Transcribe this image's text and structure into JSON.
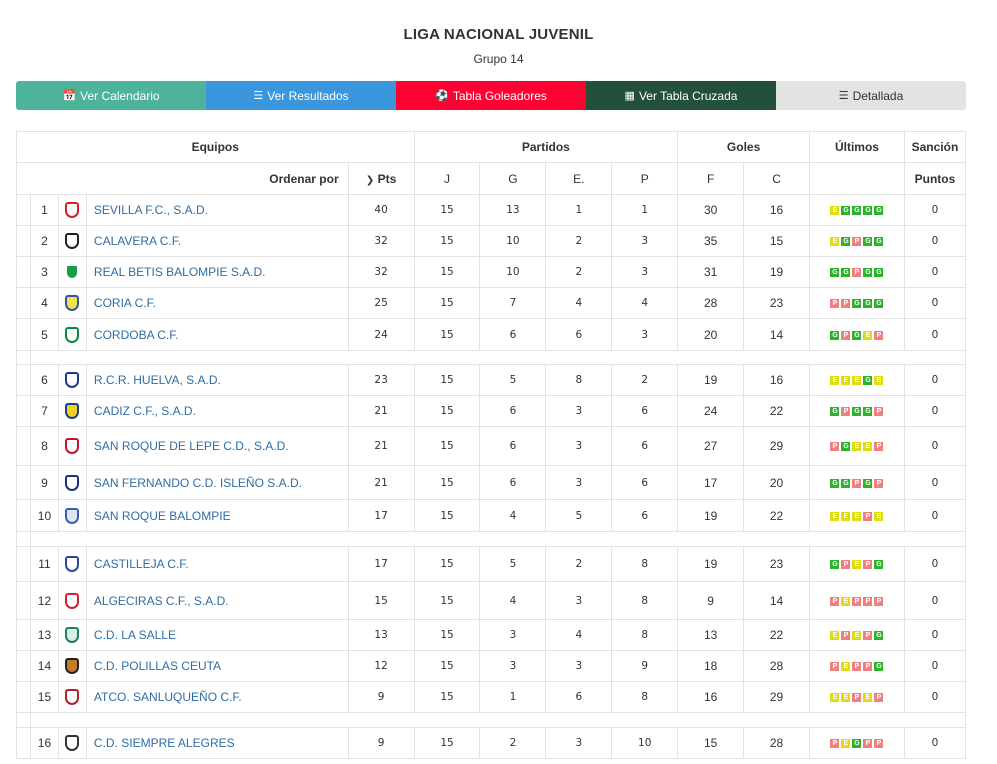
{
  "header": {
    "title": "LIGA NACIONAL JUVENIL",
    "subtitle": "Grupo 14"
  },
  "buttons": [
    {
      "label": "Ver Calendario",
      "icon": "calendar-icon",
      "color": "#4db39a"
    },
    {
      "label": "Ver Resultados",
      "icon": "list-icon",
      "color": "#3a97de"
    },
    {
      "label": "Tabla Goleadores",
      "icon": "soccer-ball-icon",
      "color": "#ff0033"
    },
    {
      "label": "Ver Tabla Cruzada",
      "icon": "grid-icon",
      "color": "#23503a"
    },
    {
      "label": "Detallada",
      "icon": "detail-list-icon",
      "color": "#e3e3e3"
    }
  ],
  "table": {
    "group_headers": {
      "equipos": "Equipos",
      "partidos": "Partidos",
      "goles": "Goles",
      "ultimos": "Últimos",
      "sancion": "Sanción"
    },
    "sub_headers": {
      "ordenar": "Ordenar por",
      "pts": "Pts",
      "j": "J",
      "g": "G",
      "e": "E.",
      "p": "P",
      "f": "F",
      "c": "C",
      "puntos": "Puntos"
    },
    "rows": [
      {
        "pos": "1",
        "team": "SEVILLA F.C., S.A.D.",
        "pts": "40",
        "j": "15",
        "g": "13",
        "e": "1",
        "p": "1",
        "f": "30",
        "c": "16",
        "last": [
          "E",
          "G",
          "G",
          "G",
          "G"
        ],
        "sancion": "0",
        "logo": [
          "#ffffff",
          "#d41f26"
        ]
      },
      {
        "pos": "2",
        "team": "CALAVERA C.F.",
        "pts": "32",
        "j": "15",
        "g": "10",
        "e": "2",
        "p": "3",
        "f": "35",
        "c": "15",
        "last": [
          "E",
          "G",
          "P",
          "G",
          "G"
        ],
        "sancion": "0",
        "logo": [
          "#ffffff",
          "#222222"
        ]
      },
      {
        "pos": "3",
        "team": "REAL BETIS BALOMPIE S.A.D.",
        "pts": "32",
        "j": "15",
        "g": "10",
        "e": "2",
        "p": "3",
        "f": "31",
        "c": "19",
        "last": [
          "G",
          "G",
          "P",
          "G",
          "G"
        ],
        "sancion": "0",
        "logo": [
          "#1a9c4b",
          "#ffffff"
        ]
      },
      {
        "pos": "4",
        "team": "CORIA C.F.",
        "pts": "25",
        "j": "15",
        "g": "7",
        "e": "4",
        "p": "4",
        "f": "28",
        "c": "23",
        "last": [
          "P",
          "P",
          "G",
          "G",
          "G"
        ],
        "sancion": "0",
        "logo": [
          "#f5e04a",
          "#2a57a8"
        ]
      },
      {
        "pos": "5",
        "team": "CORDOBA C.F.",
        "pts": "24",
        "j": "15",
        "g": "6",
        "e": "6",
        "p": "3",
        "f": "20",
        "c": "14",
        "last": [
          "G",
          "P",
          "G",
          "E",
          "P"
        ],
        "sancion": "0",
        "logo": [
          "#ffffff",
          "#0b8a3c"
        ]
      },
      {
        "pos": "6",
        "team": "R.C.R. HUELVA, S.A.D.",
        "pts": "23",
        "j": "15",
        "g": "5",
        "e": "8",
        "p": "2",
        "f": "19",
        "c": "16",
        "last": [
          "E",
          "E",
          "E",
          "G",
          "E"
        ],
        "sancion": "0",
        "logo": [
          "#ffffff",
          "#1f3a8a"
        ]
      },
      {
        "pos": "7",
        "team": "CADIZ C.F., S.A.D.",
        "pts": "21",
        "j": "15",
        "g": "6",
        "e": "3",
        "p": "6",
        "f": "24",
        "c": "22",
        "last": [
          "G",
          "P",
          "G",
          "G",
          "P"
        ],
        "sancion": "0",
        "logo": [
          "#f4d316",
          "#1a3f94"
        ]
      },
      {
        "pos": "8",
        "team": "SAN ROQUE DE LEPE C.D., S.A.D.",
        "pts": "21",
        "j": "15",
        "g": "6",
        "e": "3",
        "p": "6",
        "f": "27",
        "c": "29",
        "last": [
          "P",
          "G",
          "E",
          "E",
          "P"
        ],
        "sancion": "0",
        "logo": [
          "#ffffff",
          "#c8102e"
        ]
      },
      {
        "pos": "9",
        "team": "SAN FERNANDO C.D. ISLEÑO S.A.D.",
        "pts": "21",
        "j": "15",
        "g": "6",
        "e": "3",
        "p": "6",
        "f": "17",
        "c": "20",
        "last": [
          "G",
          "G",
          "P",
          "G",
          "P"
        ],
        "sancion": "0",
        "logo": [
          "#ffffff",
          "#1b2f7a"
        ]
      },
      {
        "pos": "10",
        "team": "SAN ROQUE BALOMPIE",
        "pts": "17",
        "j": "15",
        "g": "4",
        "e": "5",
        "p": "6",
        "f": "19",
        "c": "22",
        "last": [
          "E",
          "E",
          "E",
          "P",
          "E"
        ],
        "sancion": "0",
        "logo": [
          "#dfe6f2",
          "#3460b0"
        ]
      },
      {
        "pos": "11",
        "team": "CASTILLEJA C.F.",
        "pts": "17",
        "j": "15",
        "g": "5",
        "e": "2",
        "p": "8",
        "f": "19",
        "c": "23",
        "last": [
          "G",
          "P",
          "E",
          "P",
          "G"
        ],
        "sancion": "0",
        "logo": [
          "#ffffff",
          "#2547a0"
        ]
      },
      {
        "pos": "12",
        "team": "ALGECIRAS C.F., S.A.D.",
        "pts": "15",
        "j": "15",
        "g": "4",
        "e": "3",
        "p": "8",
        "f": "9",
        "c": "14",
        "last": [
          "P",
          "E",
          "P",
          "P",
          "P"
        ],
        "sancion": "0",
        "logo": [
          "#ffffff",
          "#d0202c"
        ]
      },
      {
        "pos": "13",
        "team": "C.D. LA SALLE",
        "pts": "13",
        "j": "15",
        "g": "3",
        "e": "4",
        "p": "8",
        "f": "13",
        "c": "22",
        "last": [
          "E",
          "P",
          "E",
          "P",
          "G"
        ],
        "sancion": "0",
        "logo": [
          "#d9efe6",
          "#1c7f5a"
        ]
      },
      {
        "pos": "14",
        "team": "C.D. POLILLAS CEUTA",
        "pts": "12",
        "j": "15",
        "g": "3",
        "e": "3",
        "p": "9",
        "f": "18",
        "c": "28",
        "last": [
          "P",
          "E",
          "P",
          "P",
          "G"
        ],
        "sancion": "0",
        "logo": [
          "#c47b2a",
          "#222222"
        ]
      },
      {
        "pos": "15",
        "team": "ATCO. SANLUQUEÑO C.F.",
        "pts": "9",
        "j": "15",
        "g": "1",
        "e": "6",
        "p": "8",
        "f": "16",
        "c": "29",
        "last": [
          "E",
          "E",
          "P",
          "E",
          "P"
        ],
        "sancion": "0",
        "logo": [
          "#ffffff",
          "#b0202a"
        ]
      },
      {
        "pos": "16",
        "team": "C.D. SIEMPRE ALEGRES",
        "pts": "9",
        "j": "15",
        "g": "2",
        "e": "3",
        "p": "10",
        "f": "15",
        "c": "28",
        "last": [
          "P",
          "E",
          "G",
          "P",
          "P"
        ],
        "sancion": "0",
        "logo": [
          "#ffffff",
          "#333333"
        ]
      }
    ]
  }
}
